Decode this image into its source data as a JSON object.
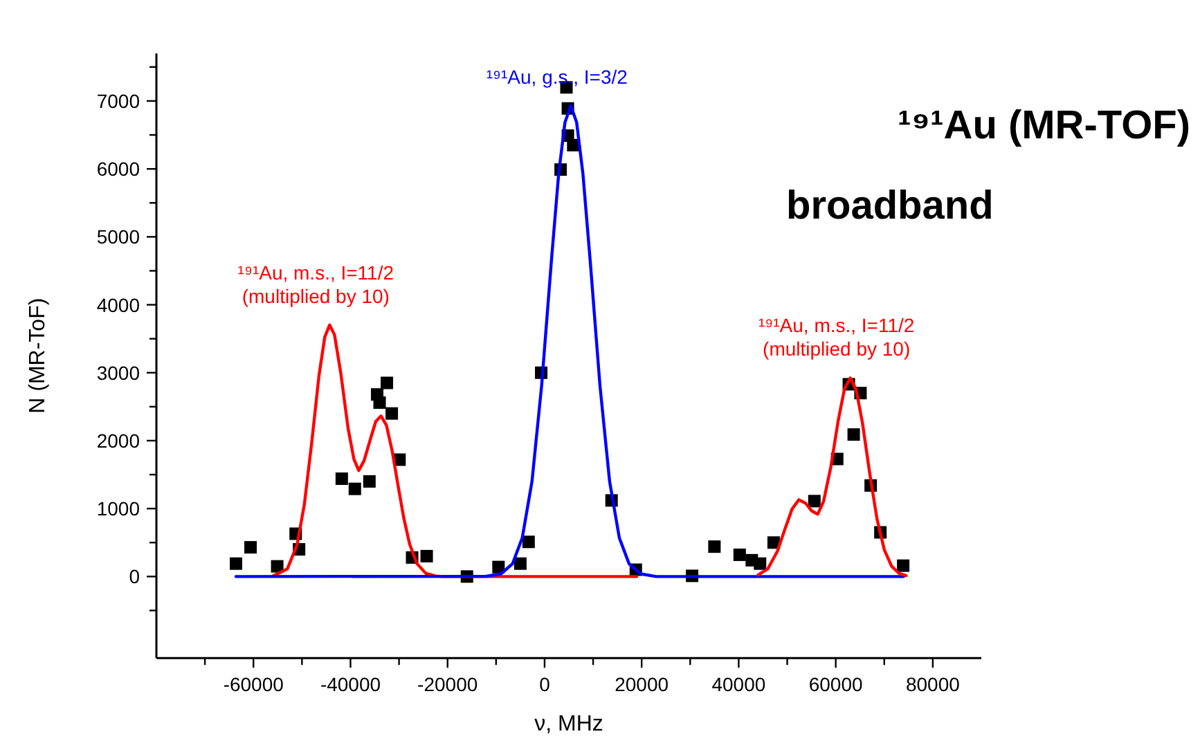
{
  "chart_data": {
    "type": "scatter",
    "title": "¹⁹¹Au (MR-TOF)",
    "subtitle": "broadband",
    "xlabel": "ν, MHz",
    "ylabel": "N (MR-ToF)",
    "xlim": [
      -80000,
      90000
    ],
    "xticks": [
      {
        "value": -70000,
        "label": null
      },
      -60000,
      {
        "value": -50000,
        "label": null
      },
      -40000,
      {
        "value": -30000,
        "label": null
      },
      -20000,
      {
        "value": -10000,
        "label": null
      },
      0,
      {
        "value": 10000,
        "label": null
      },
      20000,
      {
        "value": 30000,
        "label": null
      },
      40000,
      {
        "value": 50000,
        "label": null
      },
      60000,
      {
        "value": 70000,
        "label": null
      },
      80000
    ],
    "ylim": [
      -1200,
      7700
    ],
    "yticks": [
      {
        "value": -500,
        "label": null
      },
      0,
      {
        "value": 500,
        "label": null
      },
      1000,
      {
        "value": 1500,
        "label": null
      },
      2000,
      {
        "value": 2500,
        "label": null
      },
      3000,
      {
        "value": 3500,
        "label": null
      },
      4000,
      {
        "value": 4500,
        "label": null
      },
      5000,
      {
        "value": 5500,
        "label": null
      },
      6000,
      {
        "value": 6500,
        "label": null
      },
      7000,
      {
        "value": 7500,
        "label": null
      }
    ],
    "grid": false,
    "series": [
      {
        "type": "line",
        "name": "¹⁹¹Au, m.s., I=11/2 (multiplied by 10)",
        "color": "#ff0000",
        "marker": "none",
        "x": [
          -56000,
          -53000,
          -51000,
          -49500,
          -48000,
          -46500,
          -45300,
          -44300,
          -43300,
          -42000,
          -40500,
          -39300,
          -38300,
          -37200,
          -36000,
          -34800,
          -33700,
          -32600,
          -31400,
          -30200,
          -29000,
          -27800,
          -26300,
          -24500,
          -22500,
          -21000,
          19000
        ],
        "values": [
          7,
          114,
          470,
          1067,
          1967,
          2955,
          3525,
          3703,
          3559,
          2993,
          2183,
          1728,
          1560,
          1705,
          1999,
          2282,
          2363,
          2228,
          1843,
          1340,
          853,
          475,
          190,
          48,
          7,
          0,
          0
        ]
      },
      {
        "type": "line",
        "name": "¹⁹¹Au, g.s., I=3/2",
        "color": "#0000ff",
        "marker": "none",
        "x": [
          -63600,
          -12000,
          -9000,
          -6600,
          -4600,
          -2600,
          -600,
          1400,
          2900,
          4200,
          5400,
          6600,
          7900,
          9400,
          11400,
          13400,
          15400,
          17400,
          19800,
          23000,
          74000
        ],
        "values": [
          0,
          4,
          39,
          189,
          569,
          1399,
          2818,
          4645,
          5928,
          6685,
          6930,
          6685,
          5928,
          4645,
          2818,
          1399,
          569,
          189,
          39,
          0,
          0
        ]
      },
      {
        "type": "line",
        "name": "¹⁹¹Au, m.s., I=11/2 (multiplied by 10)",
        "color": "#ff0000",
        "marker": "none",
        "x": [
          44000,
          46000,
          48000,
          49500,
          51000,
          52400,
          53800,
          55000,
          56300,
          57500,
          59000,
          60500,
          61800,
          63000,
          64200,
          65500,
          67000,
          68500,
          70000,
          71500,
          73000,
          74500
        ],
        "values": [
          22,
          113,
          375,
          692,
          994,
          1130,
          1078,
          969,
          918,
          1108,
          1618,
          2292,
          2762,
          2922,
          2754,
          2263,
          1520,
          849,
          395,
          153,
          49,
          13
        ]
      },
      {
        "color": "#000000",
        "marker": "square",
        "x": [
          -63600,
          -60600,
          -55100,
          -51300,
          -50600,
          -41800,
          -39100,
          -36100,
          -34500,
          -34000,
          -32500,
          -31500,
          -29900,
          -27300,
          -24300,
          -16000,
          -9500,
          -5000,
          -3300,
          -700,
          3300,
          4500,
          4800,
          4800,
          5900,
          13800,
          18800,
          30400,
          35000,
          40200,
          42700,
          44400,
          47200,
          55600,
          60300,
          62700,
          63700,
          65100,
          67200,
          69200,
          73900
        ],
        "values": [
          190,
          430,
          150,
          630,
          400,
          1440,
          1290,
          1400,
          2680,
          2560,
          2850,
          2400,
          1720,
          280,
          300,
          0,
          140,
          190,
          510,
          3000,
          5990,
          7200,
          6890,
          6490,
          6350,
          1120,
          100,
          10,
          440,
          320,
          240,
          190,
          500,
          1110,
          1730,
          2830,
          2090,
          2700,
          1340,
          650,
          160
        ]
      }
    ]
  }
}
